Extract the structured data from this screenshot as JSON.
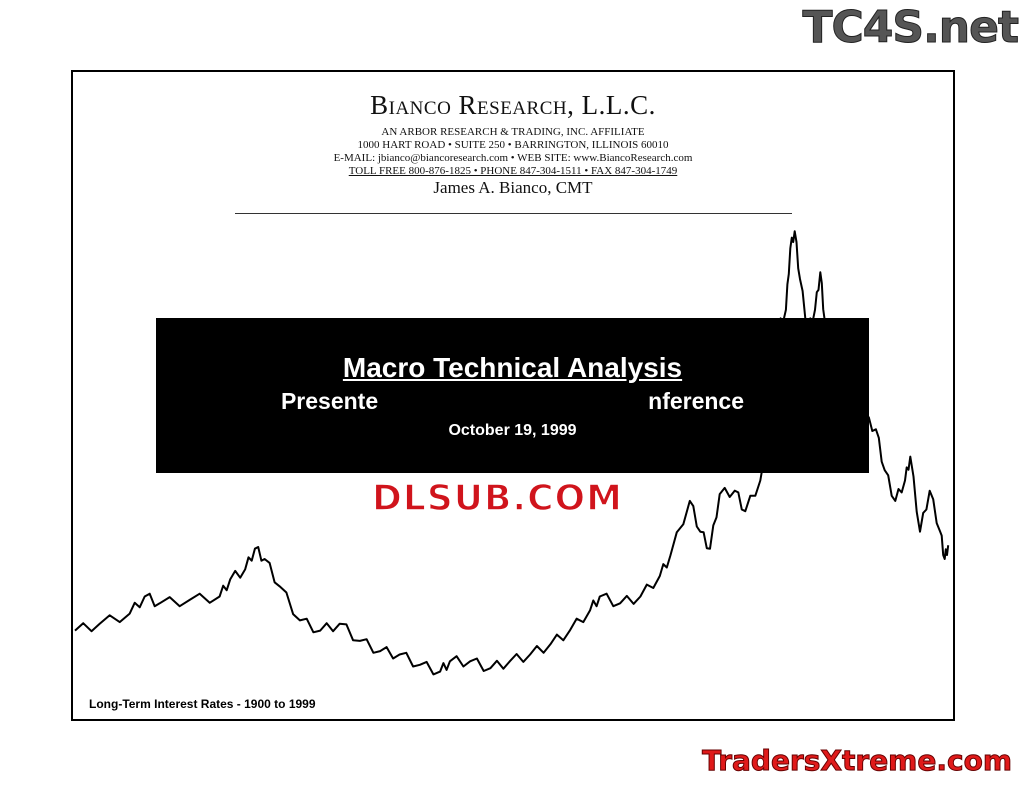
{
  "header": {
    "firm": "Bianco Research, L.L.C.",
    "affiliate": "AN ARBOR RESEARCH & TRADING, INC. AFFILIATE",
    "address": "1000 HART ROAD • SUITE 250 • BARRINGTON, ILLINOIS 60010",
    "contact": "E-MAIL:  jbianco@biancoresearch.com  •  WEB SITE:  www.BiancoResearch.com",
    "phones": "TOLL FREE  800-876-1825  •  PHONE  847-304-1511  •  FAX  847-304-1749",
    "person": "James A. Bianco, CMT"
  },
  "banner": {
    "title": "Macro Technical Analysis",
    "subtitle_left": "Presente",
    "subtitle_right": "nference",
    "date": "October 19, 1999"
  },
  "watermarks": {
    "center": "DLSUB.COM",
    "top_right": "TC4S.net",
    "bottom_right": "TradersXtreme.com"
  },
  "caption": "Long-Term Interest Rates - 1900 to 1999",
  "chart_data": {
    "type": "line",
    "title": "Long-Term Interest Rates - 1900 to 1999",
    "axes_shown": false,
    "grid": false,
    "line_color": "#000000",
    "x": [
      1900,
      1902.8,
      1906.2,
      1907.9,
      1909.6,
      1913,
      1916.4,
      1917.6,
      1919.3,
      1920.4,
      1921.5,
      1923.2,
      1925.5,
      1927.8,
      1930,
      1932.3,
      1934.6,
      1936.8,
      1939.1,
      1941.4,
      1942.5,
      1944.8,
      1947.1,
      1949.3,
      1951.6,
      1953.9,
      1956.1,
      1958.4,
      1959.5,
      1961.8,
      1964.1,
      1966.3,
      1967.5,
      1969.7,
      1970.9,
      1972,
      1973.1,
      1974.8,
      1976,
      1977.7,
      1978.8,
      1979.7,
      1980.6,
      1981.1,
      1981.6,
      1982.2,
      1983.1,
      1983.9,
      1984.5,
      1985,
      1986.2,
      1987.9,
      1989.6,
      1990.8,
      1991.8,
      1993,
      1994.1,
      1994.7,
      1995.8,
      1996.9,
      1998.1,
      1998.6,
      1999
    ],
    "y": [
      3.3,
      3.5,
      3.8,
      4.3,
      4.1,
      4.2,
      4.3,
      4.8,
      5.1,
      5.7,
      5.4,
      4.6,
      3.6,
      3.3,
      3.5,
      3.0,
      2.7,
      2.6,
      2.3,
      2.1,
      2.4,
      2.4,
      2.2,
      2.4,
      2.6,
      2.9,
      3.3,
      3.9,
      4.3,
      4.1,
      4.3,
      4.9,
      5.5,
      7.1,
      6.2,
      5.7,
      7.3,
      7.4,
      6.8,
      7.7,
      8.9,
      12.1,
      12.7,
      14.5,
      15.0,
      13.6,
      12.1,
      12.7,
      13.8,
      12.4,
      11.2,
      10.4,
      9.5,
      9.2,
      8.0,
      7.1,
      7.7,
      8.4,
      6.2,
      7.4,
      6.2,
      5.4,
      5.8
    ]
  }
}
